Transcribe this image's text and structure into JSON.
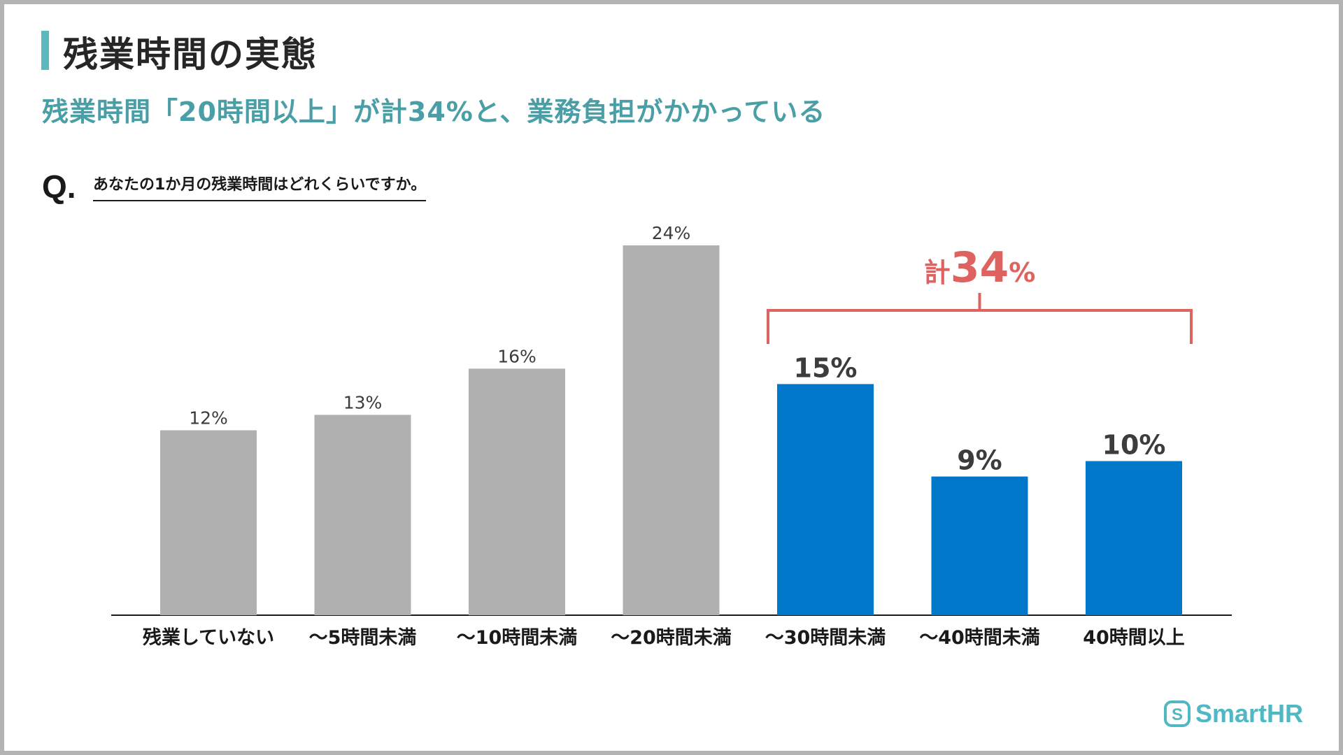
{
  "slide": {
    "title": "残業時間の実態",
    "subtitle": "残業時間「20時間以上」が計34%と、業務負担がかかっている",
    "q_mark": "Q.",
    "question": "あなたの1か月の残業時間はどれくらいですか。"
  },
  "chart_data": {
    "type": "bar",
    "categories": [
      "残業していない",
      "〜5時間未満",
      "〜10時間未満",
      "〜20時間未満",
      "〜30時間未満",
      "〜40時間未満",
      "40時間以上"
    ],
    "values": [
      12,
      13,
      16,
      24,
      15,
      9,
      10
    ],
    "value_labels": [
      "12%",
      "13%",
      "16%",
      "24%",
      "15%",
      "9%",
      "10%"
    ],
    "colors": [
      "#b0b0b1",
      "#b0b0b1",
      "#b0b0b1",
      "#b0b0b1",
      "#0077c8",
      "#0077c8",
      "#0077c8"
    ],
    "label_colors": [
      "#3c3c3c",
      "#3c3c3c",
      "#3c3c3c",
      "#3c3c3c",
      "#3c3c3c",
      "#3c3c3c",
      "#3c3c3c"
    ],
    "emphasized": [
      false,
      false,
      false,
      false,
      true,
      true,
      true
    ],
    "ylim": [
      0,
      24
    ],
    "grid": false,
    "annotation": {
      "prefix": "計",
      "number": "34",
      "suffix": "%",
      "bracket_from": 4,
      "bracket_to": 6,
      "color": "#de6360"
    }
  },
  "brand": {
    "name": "SmartHR",
    "color": "#4fb8c2"
  }
}
